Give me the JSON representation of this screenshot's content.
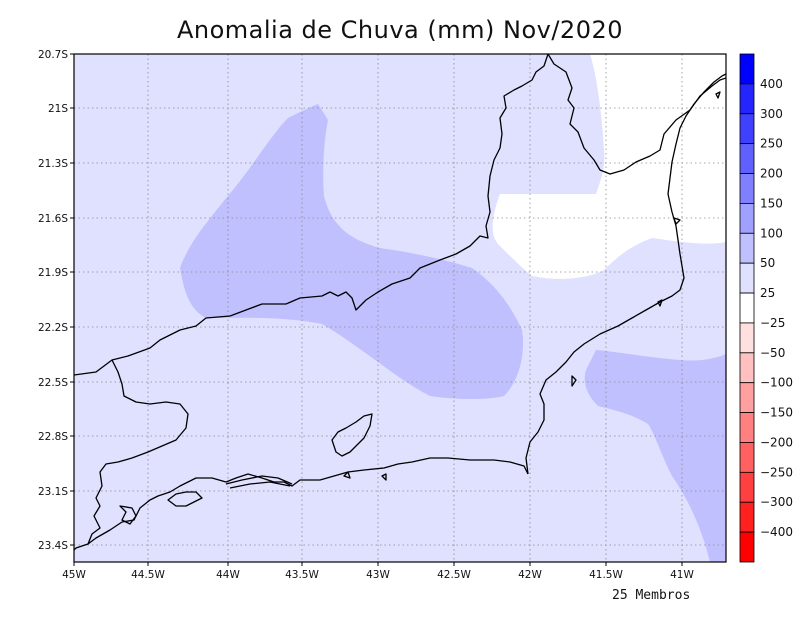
{
  "title": "Anomalia de Chuva (mm) Nov/2020",
  "footer": "25 Membros",
  "axes": {
    "lat_ticks": [
      "20.7S",
      "21S",
      "21.3S",
      "21.6S",
      "21.9S",
      "22.2S",
      "22.5S",
      "22.8S",
      "23.1S",
      "23.4S"
    ],
    "lon_ticks": [
      "45W",
      "44.5W",
      "44W",
      "43.5W",
      "43W",
      "42.5W",
      "42W",
      "41.5W",
      "41W"
    ]
  },
  "legend": {
    "labels": [
      "400",
      "300",
      "250",
      "200",
      "150",
      "100",
      "50",
      "25",
      "−25",
      "−50",
      "−100",
      "−150",
      "−200",
      "−250",
      "−300",
      "−400"
    ],
    "colors": [
      "#0000ff",
      "#2525ff",
      "#4040ff",
      "#6060ff",
      "#8080ff",
      "#a0a0ff",
      "#c0c0ff",
      "#e0e0ff",
      "#ffffff",
      "#ffe0e0",
      "#ffc0c0",
      "#ffa0a0",
      "#ff8080",
      "#ff6060",
      "#ff4040",
      "#ff2020",
      "#ff0000"
    ]
  },
  "map": {
    "variable": "rainfall anomaly",
    "units": "mm",
    "region": "Rio de Janeiro state and surroundings"
  }
}
